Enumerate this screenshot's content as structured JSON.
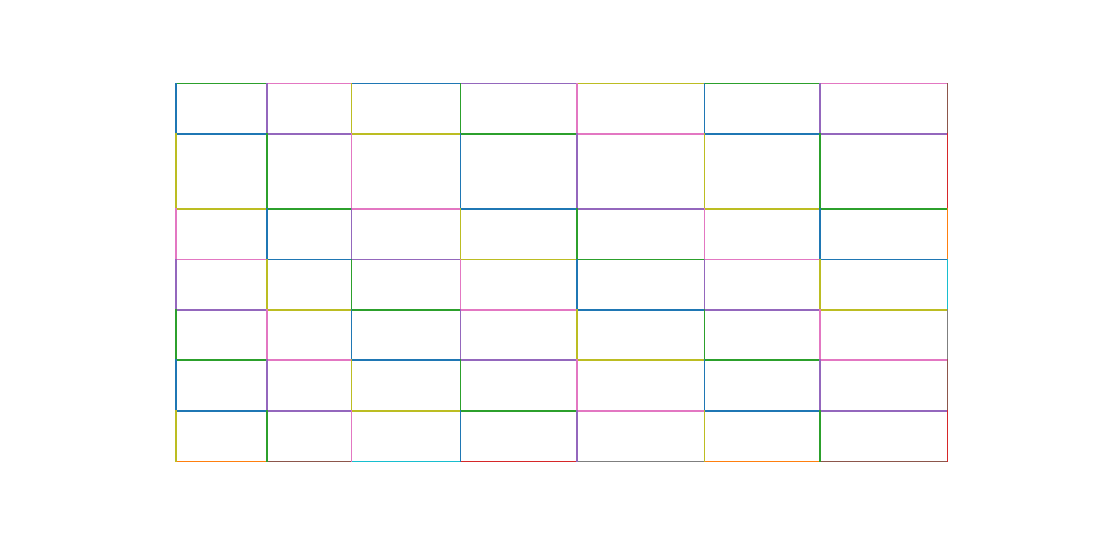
{
  "chart_data": {
    "type": "line",
    "title": "",
    "xlabel": "",
    "ylabel": "",
    "axes_visible": false,
    "grid": false,
    "palette": {
      "blue": "#1f77b4",
      "orange": "#ff7f0e",
      "green": "#2ca02c",
      "red": "#d62728",
      "purple": "#9467bd",
      "brown": "#8c564b",
      "pink": "#e377c2",
      "gray": "#7f7f7f",
      "olive": "#bcbd22",
      "cyan": "#17becf"
    },
    "horizontal_edges": [
      [
        "green",
        "pink",
        "blue",
        "purple",
        "olive",
        "green",
        "pink"
      ],
      [
        "blue",
        "purple",
        "olive",
        "green",
        "pink",
        "blue",
        "purple"
      ],
      [
        "olive",
        "green",
        "pink",
        "blue",
        "purple",
        "olive",
        "green"
      ],
      [
        "pink",
        "blue",
        "purple",
        "olive",
        "green",
        "pink",
        "blue"
      ],
      [
        "purple",
        "olive",
        "green",
        "pink",
        "blue",
        "purple",
        "olive"
      ],
      [
        "green",
        "pink",
        "blue",
        "purple",
        "olive",
        "green",
        "pink"
      ],
      [
        "blue",
        "purple",
        "olive",
        "green",
        "pink",
        "blue",
        "purple"
      ],
      [
        "orange",
        "brown",
        "cyan",
        "red",
        "gray",
        "orange",
        "brown"
      ]
    ],
    "vertical_edges": [
      [
        "blue",
        "olive",
        "pink",
        "purple",
        "green",
        "blue",
        "olive"
      ],
      [
        "purple",
        "green",
        "blue",
        "olive",
        "pink",
        "purple",
        "green"
      ],
      [
        "olive",
        "pink",
        "purple",
        "green",
        "blue",
        "olive",
        "pink"
      ],
      [
        "green",
        "blue",
        "olive",
        "pink",
        "purple",
        "green",
        "blue"
      ],
      [
        "pink",
        "purple",
        "green",
        "blue",
        "olive",
        "pink",
        "purple"
      ],
      [
        "blue",
        "olive",
        "pink",
        "purple",
        "green",
        "blue",
        "olive"
      ],
      [
        "purple",
        "green",
        "blue",
        "olive",
        "pink",
        "purple",
        "green"
      ],
      [
        "brown",
        "red",
        "orange",
        "cyan",
        "gray",
        "brown",
        "red"
      ]
    ]
  }
}
